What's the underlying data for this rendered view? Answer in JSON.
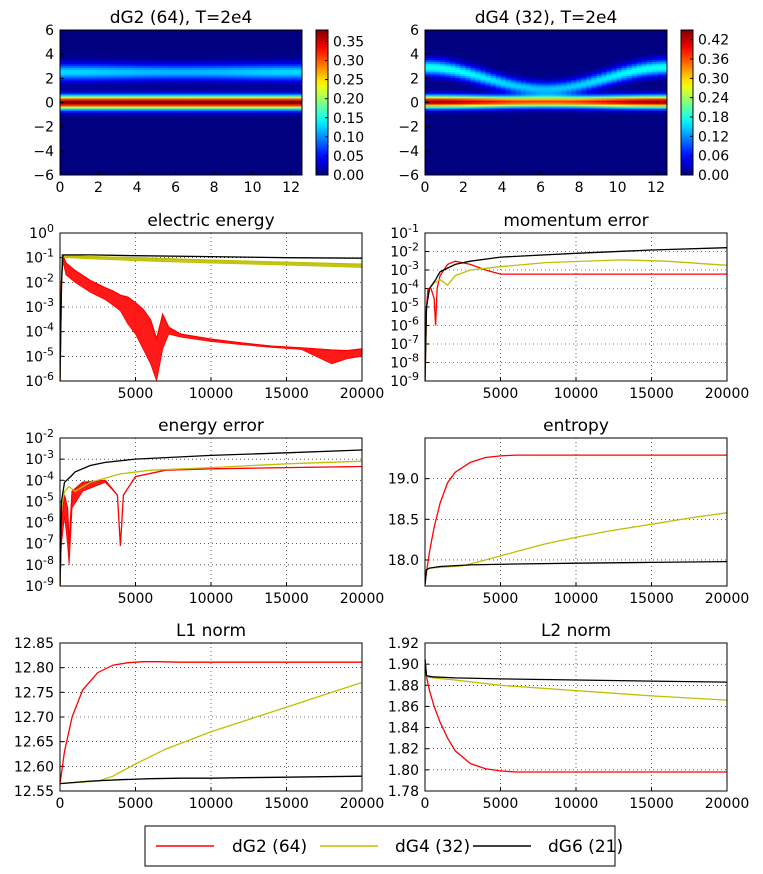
{
  "chart_data": [
    {
      "type": "heatmap",
      "title": "dG2 (64), T=2e4",
      "xlim": [
        0,
        12.566
      ],
      "ylim": [
        -6,
        6
      ],
      "xticks": [
        "0",
        "2",
        "4",
        "6",
        "8",
        "10",
        "12"
      ],
      "yticks": [
        "6",
        "4",
        "2",
        "0",
        "−2",
        "−4",
        "−6"
      ],
      "colorbar": {
        "min": 0.0,
        "max": 0.38,
        "ticks": [
          "0.35",
          "0.30",
          "0.25",
          "0.20",
          "0.15",
          "0.10",
          "0.05",
          "0.00"
        ]
      },
      "bands": [
        {
          "v_center": 0.0,
          "width": 0.55,
          "peak": 0.38,
          "modulation": 0.0
        },
        {
          "v_center": 2.5,
          "width": 0.7,
          "peak": 0.13,
          "modulation": 0.2
        }
      ],
      "background": 0.0
    },
    {
      "type": "heatmap",
      "title": "dG4 (32), T=2e4",
      "xlim": [
        0,
        12.566
      ],
      "ylim": [
        -6,
        6
      ],
      "xticks": [
        "0",
        "2",
        "4",
        "6",
        "8",
        "10",
        "12"
      ],
      "yticks": [
        "6",
        "4",
        "2",
        "0",
        "−2",
        "−4",
        "−6"
      ],
      "colorbar": {
        "min": 0.0,
        "max": 0.45,
        "ticks": [
          "0.42",
          "0.36",
          "0.30",
          "0.24",
          "0.18",
          "0.12",
          "0.06",
          "0.00"
        ]
      },
      "bands": [
        {
          "v_center": 0.05,
          "width": 0.5,
          "peak": 0.44,
          "modulation": 0.35
        },
        {
          "v_center": 2.0,
          "width": 0.65,
          "peak": 0.18,
          "modulation": 0.4
        }
      ],
      "background": 0.0
    },
    {
      "type": "line",
      "title": "electric energy",
      "yscale": "log",
      "ylim": [
        1e-06,
        1
      ],
      "xlim": [
        0,
        20000
      ],
      "xticks": [
        "5000",
        "10000",
        "15000",
        "20000"
      ],
      "yticks": [
        "10^0",
        "10^-1",
        "10^-2",
        "10^-3",
        "10^-4",
        "10^-5",
        "10^-6"
      ],
      "grid": true,
      "series": [
        {
          "name": "dG2 (64)",
          "color": "#ff0000",
          "x": [
            0,
            80,
            150,
            250,
            400,
            1000,
            2000,
            3000,
            3500,
            4000,
            4500,
            5000,
            5500,
            6000,
            6400,
            6800,
            7200,
            8000,
            10000,
            12000,
            14000,
            16000,
            18000,
            19000,
            20000
          ],
          "y": [
            1e-06,
            0.002,
            0.12,
            0.1,
            0.06,
            0.03,
            0.012,
            0.006,
            0.0045,
            0.003,
            0.0025,
            0.0015,
            0.0008,
            0.0003,
            5e-05,
            0.0005,
            0.00015,
            8e-05,
            5e-05,
            3.5e-05,
            2.6e-05,
            2.2e-05,
            1.8e-05,
            1.7e-05,
            2e-05
          ],
          "envelope_low": [
            1e-06,
            0.001,
            0.06,
            0.05,
            0.02,
            0.01,
            0.004,
            0.002,
            0.0012,
            0.0007,
            0.0002,
            8e-05,
            2e-05,
            5e-06,
            1e-06,
            2e-05,
            8e-05,
            6e-05,
            4e-05,
            3e-05,
            2.3e-05,
            1.9e-05,
            5e-06,
            8e-06,
            1e-05
          ]
        },
        {
          "name": "dG4 (32)",
          "color": "#bfbf00",
          "x": [
            0,
            100,
            200,
            500,
            2000,
            5000,
            10000,
            15000,
            20000
          ],
          "y": [
            1e-06,
            0.01,
            0.12,
            0.12,
            0.11,
            0.1,
            0.08,
            0.065,
            0.055
          ],
          "envelope_low": [
            1e-06,
            0.01,
            0.1,
            0.1,
            0.09,
            0.075,
            0.06,
            0.05,
            0.04
          ]
        },
        {
          "name": "dG6 (21)",
          "color": "#000000",
          "x": [
            0,
            100,
            200,
            500,
            2000,
            5000,
            10000,
            15000,
            20000
          ],
          "y": [
            1e-06,
            0.01,
            0.13,
            0.13,
            0.13,
            0.12,
            0.11,
            0.1,
            0.095
          ]
        }
      ]
    },
    {
      "type": "line",
      "title": "momentum error",
      "yscale": "log",
      "ylim": [
        1e-09,
        0.1
      ],
      "xlim": [
        0,
        20000
      ],
      "xticks": [
        "5000",
        "10000",
        "15000",
        "20000"
      ],
      "yticks": [
        "10^-1",
        "10^-2",
        "10^-3",
        "10^-4",
        "10^-5",
        "10^-6",
        "10^-7",
        "10^-8",
        "10^-9"
      ],
      "grid": true,
      "series": [
        {
          "name": "dG2 (64)",
          "color": "#ff0000",
          "x": [
            0,
            100,
            200,
            400,
            600,
            700,
            800,
            1000,
            1500,
            2000,
            3000,
            4000,
            5000,
            10000,
            15000,
            20000
          ],
          "y": [
            1e-09,
            1e-05,
            0.0001,
            0.0001,
            3e-05,
            1e-06,
            0.0001,
            0.0005,
            0.002,
            0.003,
            0.002,
            0.001,
            0.0006,
            0.0006,
            0.0006,
            0.0006
          ]
        },
        {
          "name": "dG4 (32)",
          "color": "#bfbf00",
          "x": [
            0,
            100,
            300,
            600,
            1000,
            1500,
            2000,
            3000,
            5000,
            8000,
            13000,
            16000,
            20000
          ],
          "y": [
            1e-09,
            1e-05,
            0.0001,
            0.0002,
            0.0003,
            0.00015,
            0.0005,
            0.001,
            0.0015,
            0.0025,
            0.0035,
            0.003,
            0.0018
          ]
        },
        {
          "name": "dG6 (21)",
          "color": "#000000",
          "x": [
            0,
            100,
            300,
            700,
            1000,
            2000,
            3000,
            5000,
            10000,
            15000,
            20000
          ],
          "y": [
            1e-09,
            1e-05,
            0.0001,
            0.0003,
            0.0008,
            0.002,
            0.003,
            0.005,
            0.008,
            0.012,
            0.016
          ]
        }
      ]
    },
    {
      "type": "line",
      "title": "energy error",
      "yscale": "log",
      "ylim": [
        1e-09,
        0.01
      ],
      "xlim": [
        0,
        20000
      ],
      "xticks": [
        "5000",
        "10000",
        "15000",
        "20000"
      ],
      "yticks": [
        "10^-2",
        "10^-3",
        "10^-4",
        "10^-5",
        "10^-6",
        "10^-7",
        "10^-8",
        "10^-9"
      ],
      "grid": true,
      "series": [
        {
          "name": "dG2 (64)",
          "color": "#ff0000",
          "x": [
            0,
            100,
            300,
            500,
            600,
            800,
            1500,
            3000,
            3800,
            4000,
            4200,
            5000,
            7000,
            10000,
            15000,
            20000
          ],
          "y": [
            1e-09,
            1e-06,
            2e-05,
            5e-06,
            1e-07,
            3e-05,
            8e-05,
            0.0001,
            2e-05,
            8e-08,
            2e-05,
            0.00015,
            0.0003,
            0.00035,
            0.0004,
            0.00045
          ],
          "envelope_low": [
            1e-09,
            1e-07,
            2e-06,
            1e-07,
            1e-08,
            5e-06,
            3e-05,
            8e-05,
            2e-05,
            8e-08,
            2e-05,
            0.00015,
            0.0003,
            0.00035,
            0.0004,
            0.00045
          ]
        },
        {
          "name": "dG4 (32)",
          "color": "#bfbf00",
          "x": [
            0,
            100,
            300,
            600,
            1000,
            2000,
            4000,
            6000,
            10000,
            15000,
            20000
          ],
          "y": [
            1e-09,
            5e-06,
            3e-05,
            5e-05,
            3e-05,
            8e-05,
            0.0002,
            0.0003,
            0.0004,
            0.0006,
            0.0008
          ]
        },
        {
          "name": "dG6 (21)",
          "color": "#000000",
          "x": [
            0,
            100,
            300,
            700,
            1000,
            2000,
            3000,
            5000,
            10000,
            15000,
            20000
          ],
          "y": [
            1e-09,
            1e-05,
            8e-05,
            0.00015,
            0.00025,
            0.0005,
            0.0007,
            0.001,
            0.0015,
            0.002,
            0.0027
          ]
        }
      ]
    },
    {
      "type": "line",
      "title": "entropy",
      "ylim": [
        17.68,
        19.5
      ],
      "xlim": [
        0,
        20000
      ],
      "xticks": [
        "5000",
        "10000",
        "15000",
        "20000"
      ],
      "yticks": [
        "19.0",
        "18.5",
        "18.0"
      ],
      "ytick_values": [
        19.0,
        18.5,
        18.0
      ],
      "grid": true,
      "series": [
        {
          "name": "dG2 (64)",
          "color": "#ff0000",
          "x": [
            0,
            100,
            300,
            600,
            1000,
            1500,
            2000,
            3000,
            4000,
            5000,
            6000,
            8000,
            10000,
            15000,
            20000
          ],
          "y": [
            17.7,
            17.85,
            18.1,
            18.4,
            18.7,
            18.95,
            19.08,
            19.2,
            19.26,
            19.28,
            19.29,
            19.29,
            19.29,
            19.29,
            19.29
          ]
        },
        {
          "name": "dG4 (32)",
          "color": "#bfbf00",
          "x": [
            0,
            100,
            300,
            1000,
            2500,
            4000,
            6000,
            8000,
            10000,
            12000,
            15000,
            18000,
            20000
          ],
          "y": [
            17.7,
            17.88,
            17.9,
            17.91,
            17.93,
            18.0,
            18.1,
            18.2,
            18.28,
            18.35,
            18.44,
            18.53,
            18.58
          ]
        },
        {
          "name": "dG6 (21)",
          "color": "#000000",
          "x": [
            0,
            100,
            300,
            1000,
            3000,
            6000,
            10000,
            15000,
            20000
          ],
          "y": [
            17.7,
            17.88,
            17.9,
            17.92,
            17.94,
            17.95,
            17.96,
            17.97,
            17.98
          ]
        }
      ]
    },
    {
      "type": "line",
      "title": "L1 norm",
      "ylim": [
        12.55,
        12.85
      ],
      "xlim": [
        0,
        20000
      ],
      "xticks": [
        "0",
        "5000",
        "10000",
        "15000",
        "20000"
      ],
      "yticks": [
        "12.85",
        "12.80",
        "12.75",
        "12.70",
        "12.65",
        "12.60",
        "12.55"
      ],
      "ytick_values": [
        12.85,
        12.8,
        12.75,
        12.7,
        12.65,
        12.6,
        12.55
      ],
      "grid": true,
      "series": [
        {
          "name": "dG2 (64)",
          "color": "#ff0000",
          "x": [
            0,
            300,
            800,
            1500,
            2500,
            3500,
            4500,
            5500,
            6500,
            8000,
            10000,
            15000,
            20000
          ],
          "y": [
            12.565,
            12.63,
            12.7,
            12.755,
            12.79,
            12.805,
            12.81,
            12.812,
            12.812,
            12.811,
            12.811,
            12.811,
            12.811
          ]
        },
        {
          "name": "dG4 (32)",
          "color": "#bfbf00",
          "x": [
            0,
            1000,
            2500,
            3500,
            5000,
            7000,
            10000,
            13000,
            16000,
            18000,
            20000
          ],
          "y": [
            12.565,
            12.567,
            12.57,
            12.58,
            12.605,
            12.635,
            12.67,
            12.7,
            12.73,
            12.75,
            12.77
          ]
        },
        {
          "name": "dG6 (21)",
          "color": "#000000",
          "x": [
            0,
            2000,
            4000,
            6000,
            8000,
            10000,
            12000,
            15000,
            20000
          ],
          "y": [
            12.565,
            12.57,
            12.573,
            12.575,
            12.576,
            12.576,
            12.577,
            12.578,
            12.58
          ]
        }
      ]
    },
    {
      "type": "line",
      "title": "L2 norm",
      "ylim": [
        1.78,
        1.92
      ],
      "xlim": [
        0,
        20000
      ],
      "xticks": [
        "0",
        "5000",
        "10000",
        "15000",
        "20000"
      ],
      "yticks": [
        "1.92",
        "1.90",
        "1.88",
        "1.86",
        "1.84",
        "1.82",
        "1.80",
        "1.78"
      ],
      "ytick_values": [
        1.92,
        1.9,
        1.88,
        1.86,
        1.84,
        1.82,
        1.8,
        1.78
      ],
      "grid": true,
      "series": [
        {
          "name": "dG2 (64)",
          "color": "#ff0000",
          "x": [
            0,
            100,
            300,
            600,
            1000,
            1500,
            2000,
            3000,
            4000,
            5000,
            6000,
            8000,
            10000,
            15000,
            20000
          ],
          "y": [
            1.905,
            1.888,
            1.875,
            1.86,
            1.845,
            1.83,
            1.818,
            1.806,
            1.801,
            1.799,
            1.798,
            1.798,
            1.798,
            1.798,
            1.798
          ]
        },
        {
          "name": "dG4 (32)",
          "color": "#bfbf00",
          "x": [
            0,
            100,
            500,
            2000,
            5000,
            10000,
            15000,
            20000
          ],
          "y": [
            1.905,
            1.888,
            1.887,
            1.885,
            1.88,
            1.875,
            1.87,
            1.866
          ]
        },
        {
          "name": "dG6 (21)",
          "color": "#000000",
          "x": [
            0,
            100,
            500,
            2000,
            5000,
            10000,
            15000,
            20000
          ],
          "y": [
            1.905,
            1.889,
            1.888,
            1.887,
            1.886,
            1.885,
            1.884,
            1.883
          ]
        }
      ]
    }
  ],
  "legend": {
    "position": "bottom-center",
    "entries": [
      {
        "label": "dG2 (64)",
        "color": "#ff0000"
      },
      {
        "label": "dG4 (32)",
        "color": "#bfbf00"
      },
      {
        "label": "dG6 (21)",
        "color": "#000000"
      }
    ]
  },
  "ui": {
    "exponent_labels": {
      "10^0": "0",
      "10^-1": "-1",
      "10^-2": "-2",
      "10^-3": "-3",
      "10^-4": "-4",
      "10^-5": "-5",
      "10^-6": "-6",
      "10^-7": "-7",
      "10^-8": "-8",
      "10^-9": "-9"
    }
  }
}
